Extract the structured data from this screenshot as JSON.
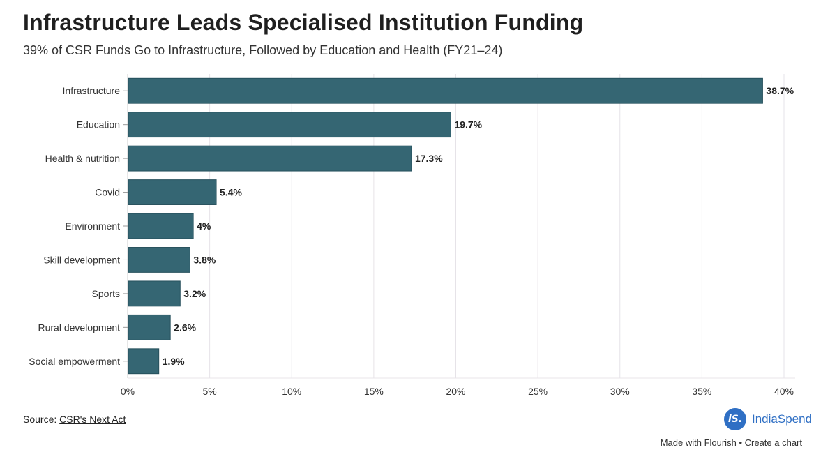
{
  "header": {
    "title": "Infrastructure Leads Specialised Institution Funding",
    "subtitle": "39% of CSR Funds Go to Infrastructure, Followed by Education and Health (FY21–24)"
  },
  "chart_data": {
    "type": "bar",
    "orientation": "horizontal",
    "categories": [
      "Infrastructure",
      "Education",
      "Health & nutrition",
      "Covid",
      "Environment",
      "Skill development",
      "Sports",
      "Rural development",
      "Social empowerment"
    ],
    "values": [
      38.7,
      19.7,
      17.3,
      5.4,
      4,
      3.8,
      3.2,
      2.6,
      1.9
    ],
    "value_labels": [
      "38.7%",
      "19.7%",
      "17.3%",
      "5.4%",
      "4%",
      "3.8%",
      "3.2%",
      "2.6%",
      "1.9%"
    ],
    "xlim": [
      0,
      40
    ],
    "xticks": [
      0,
      5,
      10,
      15,
      20,
      25,
      30,
      35,
      40
    ],
    "xtick_labels": [
      "0%",
      "5%",
      "10%",
      "15%",
      "20%",
      "25%",
      "30%",
      "35%",
      "40%"
    ],
    "grid": true,
    "bar_color": "#356673",
    "grid_color": "#e6e3e8"
  },
  "footer": {
    "source_label": "Source:",
    "source_link": "CSR's Next Act",
    "brand_logo_text": "iS.",
    "brand_name": "IndiaSpend",
    "made_with": "Made with Flourish",
    "separator": "•",
    "create_chart": "Create a chart"
  }
}
